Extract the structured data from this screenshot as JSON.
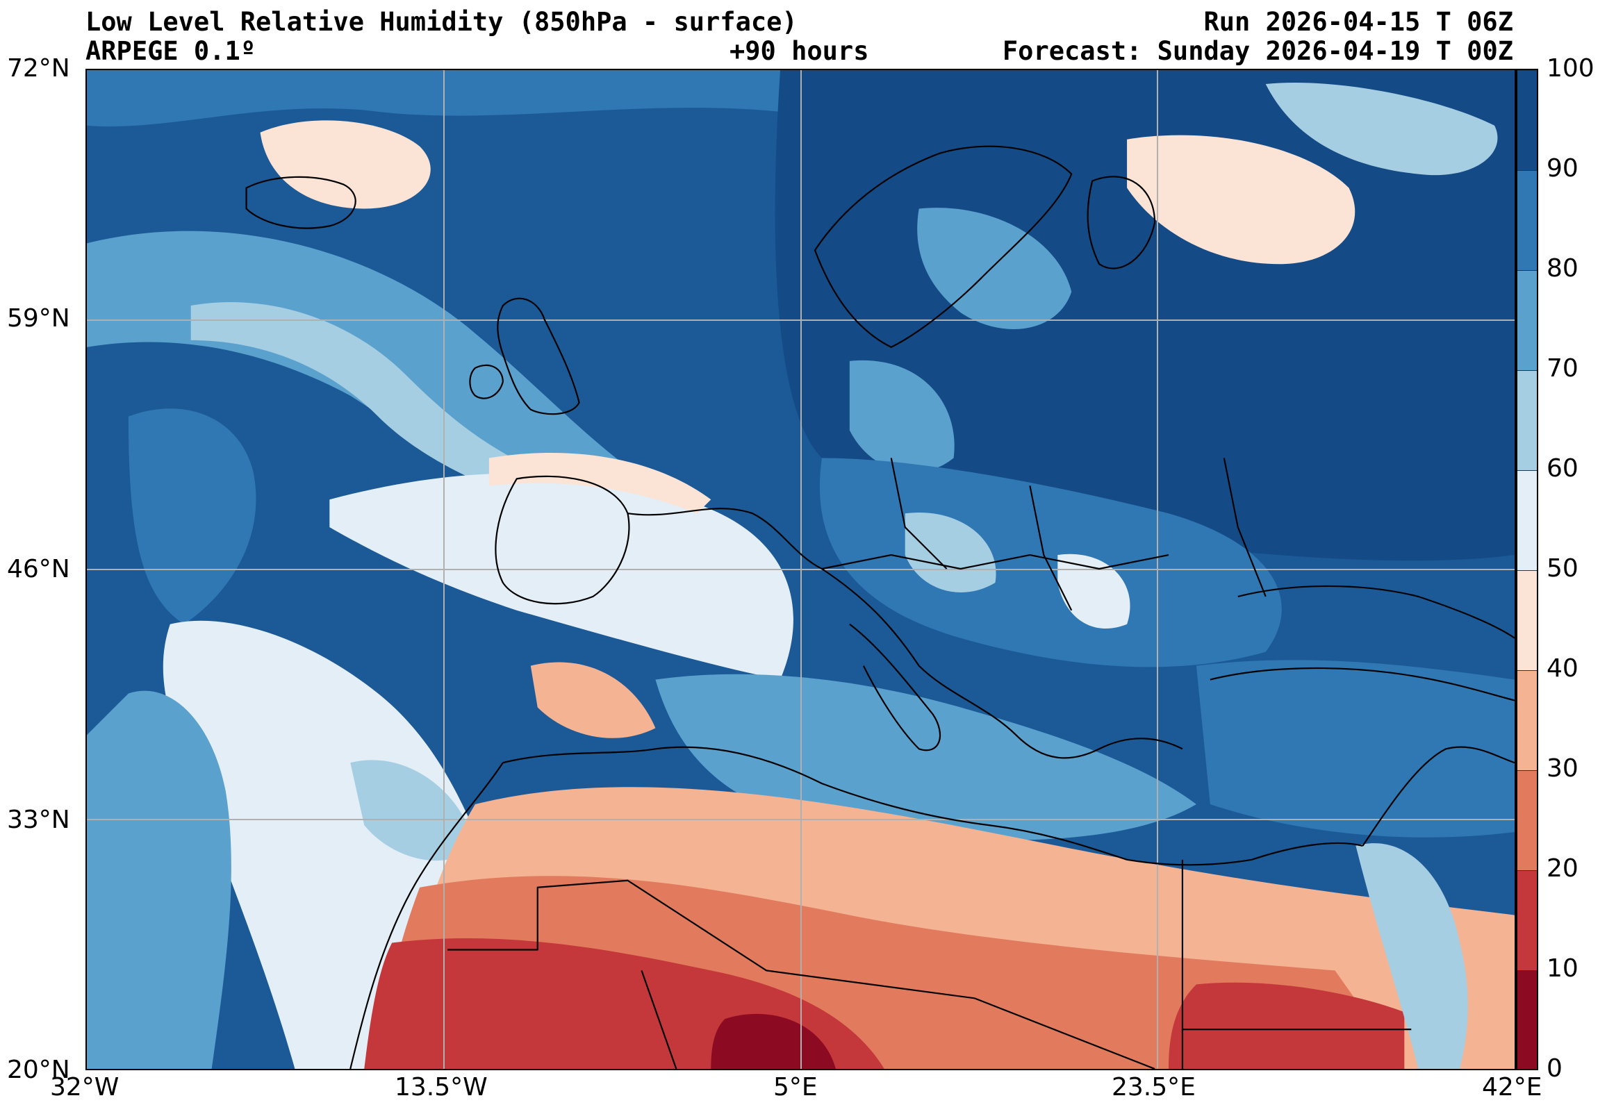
{
  "header": {
    "title_left": "Low Level Relative Humidity (850hPa - surface)",
    "model": "ARPEGE 0.1º",
    "lead": "+90 hours",
    "run": "Run 2026-04-15 T 06Z",
    "forecast": "Forecast: Sunday 2026-04-19 T 00Z"
  },
  "axes": {
    "lat_labels": [
      "72°N",
      "59°N",
      "46°N",
      "33°N",
      "20°N"
    ],
    "lon_labels": [
      "32°W",
      "13.5°W",
      "5°E",
      "23.5°E",
      "42°E"
    ]
  },
  "colorbar": {
    "labels": [
      "100",
      "90",
      "80",
      "70",
      "60",
      "50",
      "40",
      "30",
      "20",
      "10",
      "0"
    ],
    "colors": [
      "#144b86",
      "#2f78b4",
      "#5ba1cd",
      "#a6cee3",
      "#e3eef6",
      "#fbe3d6",
      "#f4b393",
      "#e27a5d",
      "#c4373a",
      "#8c0b23"
    ]
  },
  "palette": {
    "ocean_humid": "#1b5a97",
    "coast": "#000000",
    "grid": "#b0b0b0"
  }
}
